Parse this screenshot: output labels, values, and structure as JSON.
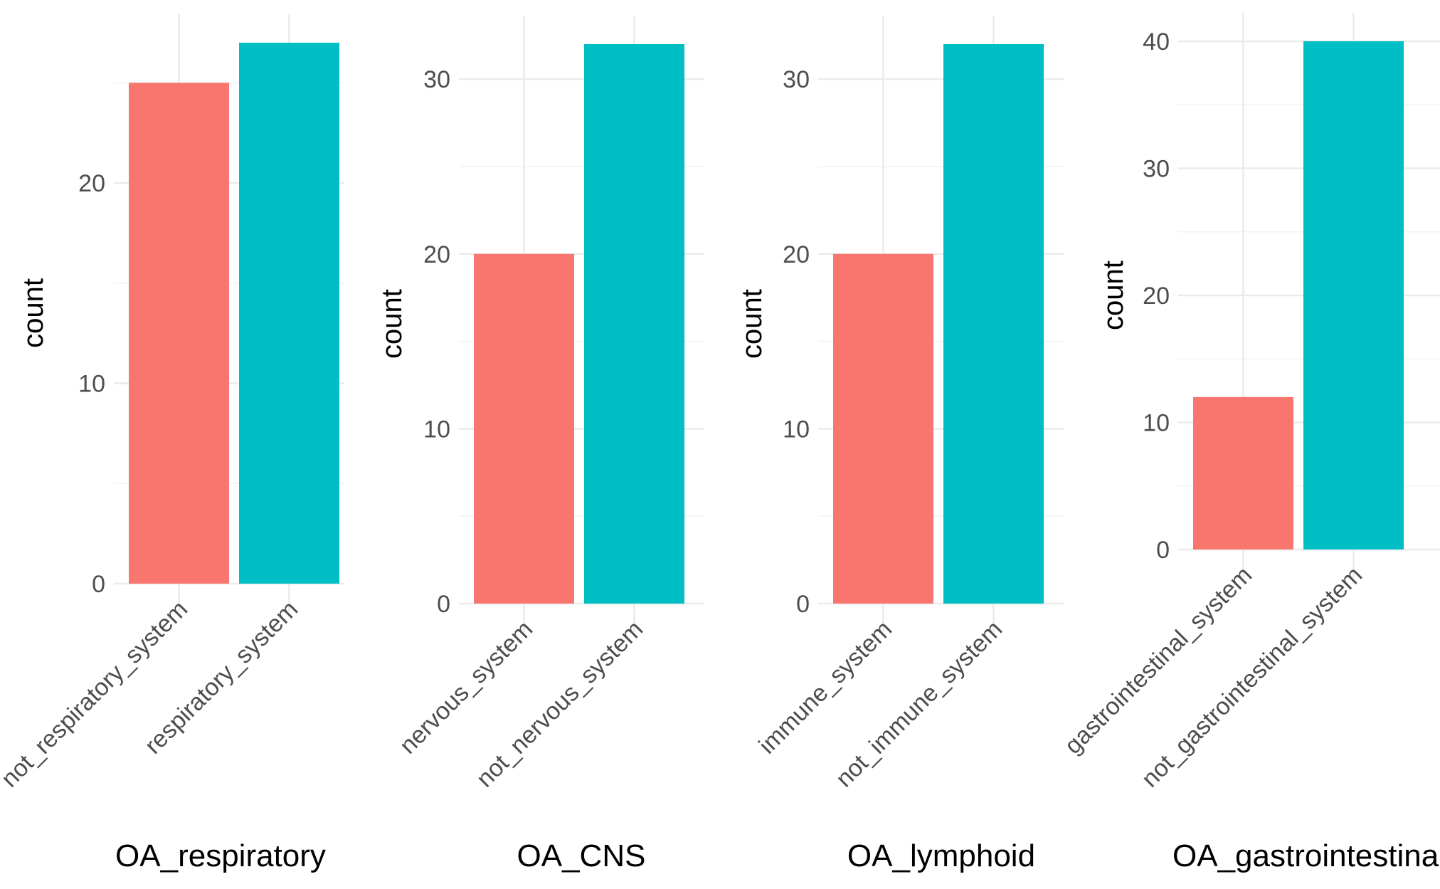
{
  "chart_data": [
    {
      "type": "bar",
      "categories": [
        "not_respiratory_system",
        "respiratory_system"
      ],
      "values": [
        25,
        27
      ],
      "colors": [
        "#F8766D",
        "#00BFC4"
      ],
      "xlabel": "OA_respiratory",
      "ylabel": "count",
      "ylim": [
        0,
        27
      ],
      "yticks": [
        0,
        10,
        20
      ],
      "grid": true,
      "legend": "none"
    },
    {
      "type": "bar",
      "categories": [
        "nervous_system",
        "not_nervous_system"
      ],
      "values": [
        20,
        32
      ],
      "colors": [
        "#F8766D",
        "#00BFC4"
      ],
      "xlabel": "OA_CNS",
      "ylabel": "count",
      "ylim": [
        0,
        32
      ],
      "yticks": [
        0,
        10,
        20,
        30
      ],
      "grid": true,
      "legend": "none"
    },
    {
      "type": "bar",
      "categories": [
        "immune_system",
        "not_immune_system"
      ],
      "values": [
        20,
        32
      ],
      "colors": [
        "#F8766D",
        "#00BFC4"
      ],
      "xlabel": "OA_lymphoid",
      "ylabel": "count",
      "ylim": [
        0,
        32
      ],
      "yticks": [
        0,
        10,
        20,
        30
      ],
      "grid": true,
      "legend": "none"
    },
    {
      "type": "bar",
      "categories": [
        "gastrointestinal_system",
        "not_gastrointestinal_system"
      ],
      "values": [
        12,
        40
      ],
      "colors": [
        "#F8766D",
        "#00BFC4"
      ],
      "xlabel": "OA_gastrointestinal",
      "ylabel": "count",
      "ylim": [
        0,
        40
      ],
      "yticks": [
        0,
        10,
        20,
        30,
        40
      ],
      "grid": true,
      "legend": "none"
    }
  ]
}
